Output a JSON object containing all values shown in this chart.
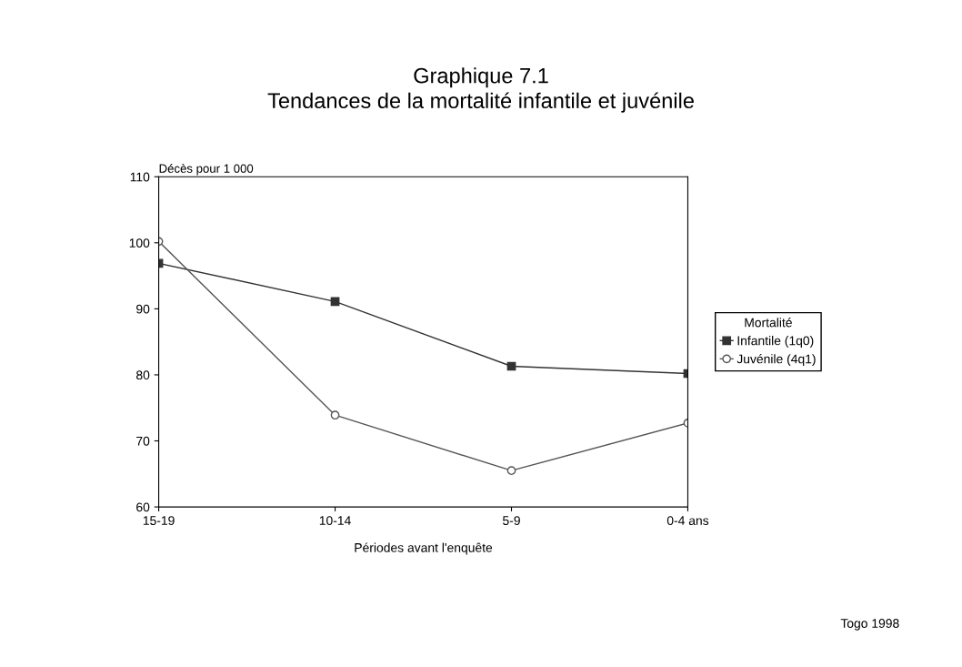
{
  "chart_data": {
    "type": "line",
    "title": "Graphique 7.1\nTendances de la mortalité infantile et juvénile",
    "xlabel": "Périodes avant l'enquête",
    "ylabel": "Décès pour 1 000",
    "legend_title": "Mortalité",
    "categories": [
      "15-19",
      "10-14",
      "5-9",
      "0-4 ans"
    ],
    "series": [
      {
        "name": "Infantile (1q0)",
        "color": "#333333",
        "marker": "square",
        "values": [
          96.9,
          91.1,
          81.3,
          80.2
        ]
      },
      {
        "name": "Juvénile (4q1)",
        "color": "#555555",
        "marker": "circle",
        "values": [
          100.2,
          73.9,
          65.5,
          72.7
        ]
      }
    ],
    "ylim": [
      60,
      110
    ],
    "yticks": [
      60,
      70,
      80,
      90,
      100,
      110
    ],
    "grid": false,
    "legend": "right",
    "annotations": [
      "Togo 1998"
    ]
  }
}
